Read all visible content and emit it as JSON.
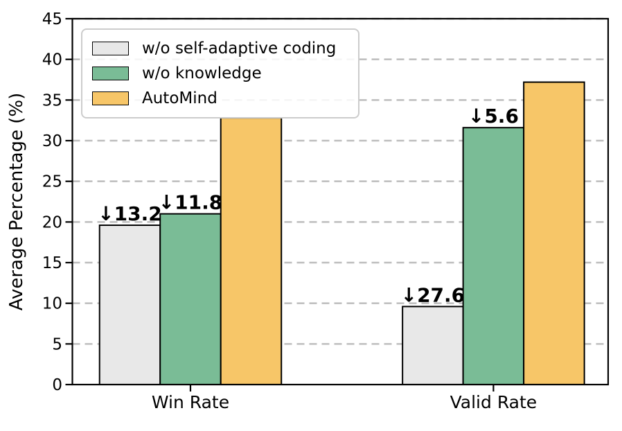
{
  "chart_data": {
    "type": "bar",
    "title": "",
    "xlabel": "",
    "ylabel": "Average Percentage (%)",
    "ylim": [
      0,
      45
    ],
    "yticks": [
      0,
      5,
      10,
      15,
      20,
      25,
      30,
      35,
      40,
      45
    ],
    "categories": [
      "Win Rate",
      "Valid Rate"
    ],
    "series": [
      {
        "name": "w/o self-adaptive coding",
        "color": "#E8E8E8",
        "values": [
          19.6,
          9.6
        ]
      },
      {
        "name": "w/o knowledge",
        "color": "#7ABC96",
        "values": [
          21.0,
          31.6
        ]
      },
      {
        "name": "AutoMind",
        "color": "#F7C668",
        "values": [
          32.8,
          37.2
        ]
      }
    ],
    "annotations": [
      {
        "category": "Win Rate",
        "series": "w/o self-adaptive coding",
        "text": "↓13.2"
      },
      {
        "category": "Win Rate",
        "series": "w/o knowledge",
        "text": "↓11.8"
      },
      {
        "category": "Valid Rate",
        "series": "w/o self-adaptive coding",
        "text": "↓27.6"
      },
      {
        "category": "Valid Rate",
        "series": "w/o knowledge",
        "text": "↓5.6"
      }
    ],
    "annotation_color": "#FF0000",
    "bar_edge_color": "#000000",
    "grid": "horizontal-dashed",
    "grid_color": "#BDBDBD",
    "legend_position": "upper left"
  }
}
